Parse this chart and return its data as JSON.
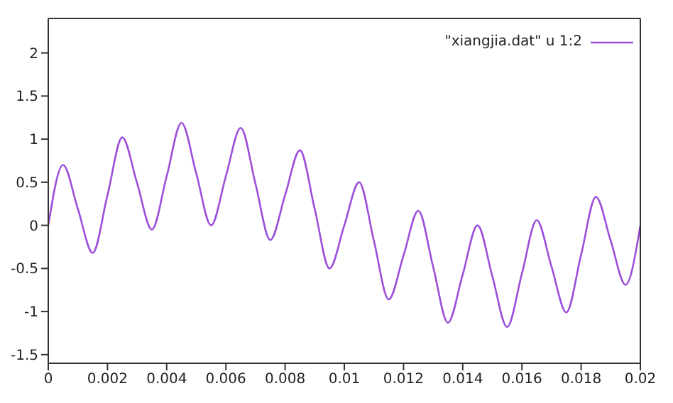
{
  "chart_data": {
    "type": "line",
    "x": [
      0,
      0.0005,
      0.001,
      0.0015,
      0.002,
      0.0025,
      0.003,
      0.0035,
      0.004,
      0.0045,
      0.005,
      0.0055,
      0.006,
      0.0065,
      0.007,
      0.0075,
      0.008,
      0.0085,
      0.009,
      0.0095,
      0.01,
      0.0105,
      0.011,
      0.0115,
      0.012,
      0.0125,
      0.013,
      0.0135,
      0.014,
      0.0145,
      0.015,
      0.0155,
      0.016,
      0.0165,
      0.017,
      0.0175,
      0.018,
      0.0185,
      0.019,
      0.0195,
      0.02
    ],
    "series": [
      {
        "name": "\"xiangjia.dat\" u 1:2",
        "color": "#9c4fd8",
        "values": [
          0,
          0.7,
          0.19,
          -0.32,
          0.35,
          1.02,
          0.49,
          -0.05,
          0.57,
          1.19,
          0.6,
          0,
          0.57,
          1.13,
          0.48,
          -0.17,
          0.35,
          0.87,
          0.19,
          -0.5,
          0,
          0.5,
          -0.18,
          -0.86,
          -0.35,
          0.17,
          -0.48,
          -1.13,
          -0.57,
          0,
          -0.59,
          -1.18,
          -0.56,
          0.06,
          -0.48,
          -1.01,
          -0.34,
          0.33,
          -0.18,
          -0.69,
          0
        ]
      }
    ],
    "xlim": [
      0,
      0.02
    ],
    "xticks": [
      0,
      0.002,
      0.004,
      0.006,
      0.008,
      0.01,
      0.012,
      0.014,
      0.016,
      0.018,
      0.02
    ],
    "ylim": [
      -1.6,
      2.4
    ],
    "yticks": [
      -1.5,
      -1,
      -0.5,
      0,
      0.5,
      1,
      1.5,
      2
    ],
    "legend": "top right",
    "marker": "none",
    "line_style": "solid"
  }
}
